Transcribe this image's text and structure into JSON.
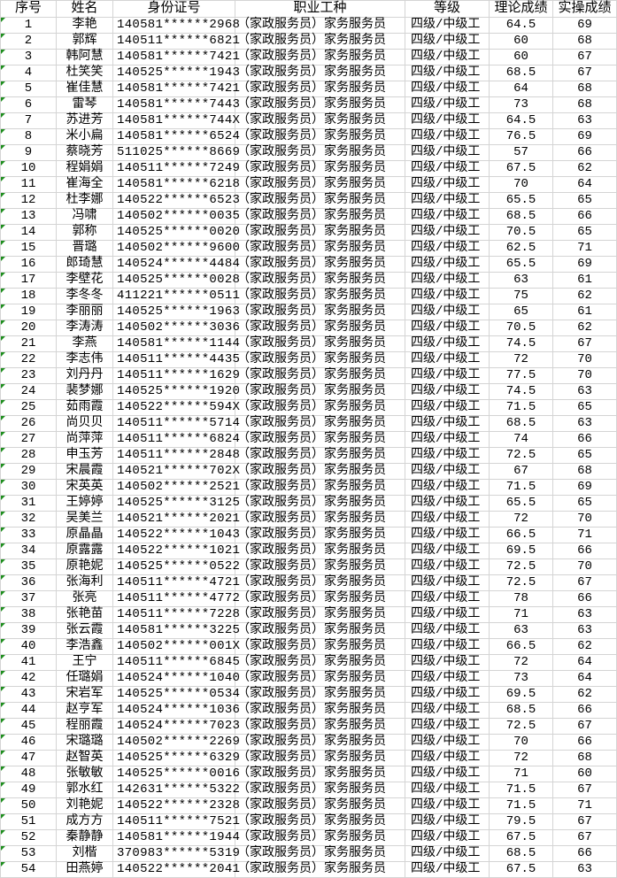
{
  "headers": [
    "序号",
    "姓名",
    "身份证号",
    "职业工种",
    "等级",
    "理论成绩",
    "实操成绩"
  ],
  "colors": {
    "grid": "#d4d4d4",
    "marker": "#1e8e1e"
  },
  "rows": [
    [
      "1",
      "李艳",
      "140581******2968",
      "（家政服务员）家务服务员",
      "四级/中级工",
      "64.5",
      "69"
    ],
    [
      "2",
      "郭辉",
      "140511******6821",
      "（家政服务员）家务服务员",
      "四级/中级工",
      "60",
      "68"
    ],
    [
      "3",
      "韩阿慧",
      "140581******7421",
      "（家政服务员）家务服务员",
      "四级/中级工",
      "60",
      "67"
    ],
    [
      "4",
      "杜笑笑",
      "140525******1943",
      "（家政服务员）家务服务员",
      "四级/中级工",
      "68.5",
      "67"
    ],
    [
      "5",
      "崔佳慧",
      "140581******7421",
      "（家政服务员）家务服务员",
      "四级/中级工",
      "64",
      "68"
    ],
    [
      "6",
      "雷琴",
      "140581******7443",
      "（家政服务员）家务服务员",
      "四级/中级工",
      "73",
      "68"
    ],
    [
      "7",
      "苏进芳",
      "140581******744X",
      "（家政服务员）家务服务员",
      "四级/中级工",
      "64.5",
      "63"
    ],
    [
      "8",
      "米小扁",
      "140581******6524",
      "（家政服务员）家务服务员",
      "四级/中级工",
      "76.5",
      "69"
    ],
    [
      "9",
      "蔡晓芳",
      "511025******8669",
      "（家政服务员）家务服务员",
      "四级/中级工",
      "57",
      "66"
    ],
    [
      "10",
      "程娟娟",
      "140511******7249",
      "（家政服务员）家务服务员",
      "四级/中级工",
      "67.5",
      "62"
    ],
    [
      "11",
      "崔海全",
      "140581******6218",
      "（家政服务员）家务服务员",
      "四级/中级工",
      "70",
      "64"
    ],
    [
      "12",
      "杜李娜",
      "140522******6523",
      "（家政服务员）家务服务员",
      "四级/中级工",
      "65.5",
      "65"
    ],
    [
      "13",
      "冯啸",
      "140502******0035",
      "（家政服务员）家务服务员",
      "四级/中级工",
      "68.5",
      "66"
    ],
    [
      "14",
      "郭称",
      "140525******0020",
      "（家政服务员）家务服务员",
      "四级/中级工",
      "70.5",
      "65"
    ],
    [
      "15",
      "晋璐",
      "140502******9600",
      "（家政服务员）家务服务员",
      "四级/中级工",
      "62.5",
      "71"
    ],
    [
      "16",
      "郎琦慧",
      "140524******4484",
      "（家政服务员）家务服务员",
      "四级/中级工",
      "65.5",
      "69"
    ],
    [
      "17",
      "李壁花",
      "140525******0028",
      "（家政服务员）家务服务员",
      "四级/中级工",
      "63",
      "61"
    ],
    [
      "18",
      "李冬冬",
      "411221******0511",
      "（家政服务员）家务服务员",
      "四级/中级工",
      "75",
      "62"
    ],
    [
      "19",
      "李丽丽",
      "140525******1963",
      "（家政服务员）家务服务员",
      "四级/中级工",
      "65",
      "61"
    ],
    [
      "20",
      "李涛涛",
      "140502******3036",
      "（家政服务员）家务服务员",
      "四级/中级工",
      "70.5",
      "62"
    ],
    [
      "21",
      "李燕",
      "140581******1144",
      "（家政服务员）家务服务员",
      "四级/中级工",
      "74.5",
      "67"
    ],
    [
      "22",
      "李志伟",
      "140511******4435",
      "（家政服务员）家务服务员",
      "四级/中级工",
      "72",
      "70"
    ],
    [
      "23",
      "刘丹丹",
      "140511******1629",
      "（家政服务员）家务服务员",
      "四级/中级工",
      "77.5",
      "70"
    ],
    [
      "24",
      "裴梦娜",
      "140525******1920",
      "（家政服务员）家务服务员",
      "四级/中级工",
      "74.5",
      "63"
    ],
    [
      "25",
      "茹雨霞",
      "140522******594X",
      "（家政服务员）家务服务员",
      "四级/中级工",
      "71.5",
      "65"
    ],
    [
      "26",
      "尚贝贝",
      "140511******5714",
      "（家政服务员）家务服务员",
      "四级/中级工",
      "68.5",
      "63"
    ],
    [
      "27",
      "尚萍萍",
      "140511******6824",
      "（家政服务员）家务服务员",
      "四级/中级工",
      "74",
      "66"
    ],
    [
      "28",
      "申玉芳",
      "140511******2848",
      "（家政服务员）家务服务员",
      "四级/中级工",
      "72.5",
      "65"
    ],
    [
      "29",
      "宋晨霞",
      "140521******702X",
      "（家政服务员）家务服务员",
      "四级/中级工",
      "67",
      "68"
    ],
    [
      "30",
      "宋英英",
      "140502******2521",
      "（家政服务员）家务服务员",
      "四级/中级工",
      "71.5",
      "69"
    ],
    [
      "31",
      "王婷婷",
      "140525******3125",
      "（家政服务员）家务服务员",
      "四级/中级工",
      "65.5",
      "65"
    ],
    [
      "32",
      "吴美兰",
      "140521******2021",
      "（家政服务员）家务服务员",
      "四级/中级工",
      "72",
      "70"
    ],
    [
      "33",
      "原晶晶",
      "140522******1043",
      "（家政服务员）家务服务员",
      "四级/中级工",
      "66.5",
      "71"
    ],
    [
      "34",
      "原露露",
      "140522******1021",
      "（家政服务员）家务服务员",
      "四级/中级工",
      "69.5",
      "66"
    ],
    [
      "35",
      "原艳妮",
      "140525******0522",
      "（家政服务员）家务服务员",
      "四级/中级工",
      "72.5",
      "70"
    ],
    [
      "36",
      "张海利",
      "140511******4721",
      "（家政服务员）家务服务员",
      "四级/中级工",
      "72.5",
      "67"
    ],
    [
      "37",
      "张亮",
      "140511******4772",
      "（家政服务员）家务服务员",
      "四级/中级工",
      "78",
      "66"
    ],
    [
      "38",
      "张艳苗",
      "140511******7228",
      "（家政服务员）家务服务员",
      "四级/中级工",
      "71",
      "63"
    ],
    [
      "39",
      "张云霞",
      "140581******3225",
      "（家政服务员）家务服务员",
      "四级/中级工",
      "63",
      "63"
    ],
    [
      "40",
      "李浩鑫",
      "140502******001X",
      "（家政服务员）家务服务员",
      "四级/中级工",
      "66.5",
      "62"
    ],
    [
      "41",
      "王宁",
      "140511******6845",
      "（家政服务员）家务服务员",
      "四级/中级工",
      "72",
      "64"
    ],
    [
      "42",
      "任璐娟",
      "140524******1040",
      "（家政服务员）家务服务员",
      "四级/中级工",
      "73",
      "64"
    ],
    [
      "43",
      "宋岩军",
      "140525******0534",
      "（家政服务员）家务服务员",
      "四级/中级工",
      "69.5",
      "62"
    ],
    [
      "44",
      "赵亨军",
      "140524******1036",
      "（家政服务员）家务服务员",
      "四级/中级工",
      "68.5",
      "66"
    ],
    [
      "45",
      "程丽霞",
      "140524******7023",
      "（家政服务员）家务服务员",
      "四级/中级工",
      "72.5",
      "67"
    ],
    [
      "46",
      "宋璐璐",
      "140502******2269",
      "（家政服务员）家务服务员",
      "四级/中级工",
      "70",
      "66"
    ],
    [
      "47",
      "赵智英",
      "140525******6329",
      "（家政服务员）家务服务员",
      "四级/中级工",
      "72",
      "68"
    ],
    [
      "48",
      "张敏敏",
      "140525******0016",
      "（家政服务员）家务服务员",
      "四级/中级工",
      "71",
      "60"
    ],
    [
      "49",
      "郭水红",
      "142631******5322",
      "（家政服务员）家务服务员",
      "四级/中级工",
      "71.5",
      "67"
    ],
    [
      "50",
      "刘艳妮",
      "140522******2328",
      "（家政服务员）家务服务员",
      "四级/中级工",
      "71.5",
      "71"
    ],
    [
      "51",
      "成方方",
      "140511******7521",
      "（家政服务员）家务服务员",
      "四级/中级工",
      "79.5",
      "67"
    ],
    [
      "52",
      "秦静静",
      "140581******1944",
      "（家政服务员）家务服务员",
      "四级/中级工",
      "67.5",
      "67"
    ],
    [
      "53",
      "刘楷",
      "370983******5319",
      "（家政服务员）家务服务员",
      "四级/中级工",
      "68.5",
      "66"
    ],
    [
      "54",
      "田燕婷",
      "140522******2041",
      "（家政服务员）家务服务员",
      "四级/中级工",
      "67.5",
      "63"
    ]
  ]
}
